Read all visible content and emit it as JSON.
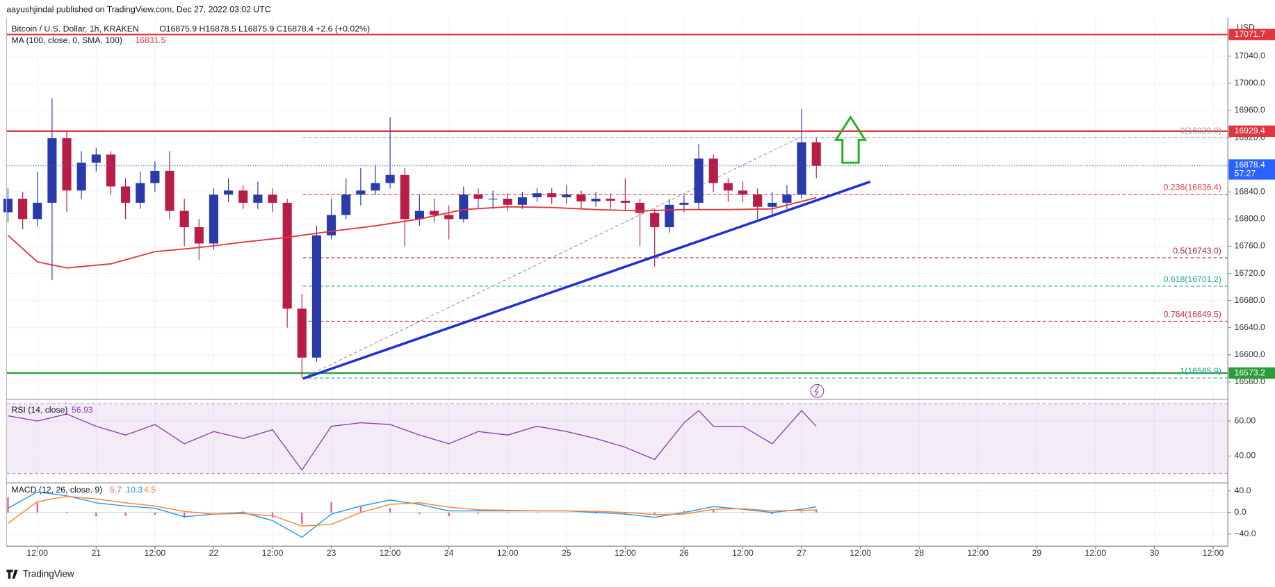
{
  "header": {
    "published": "aayushjindal published on TradingView.com, Dec 27, 2022 03:02 UTC",
    "symbol": "Bitcoin / U.S. Dollar, 1h, KRAKEN",
    "ohlc": "O16875.9 H16878.5 L16875.9 C16878.4 +2.6 (+0.02%)",
    "currency": "USD"
  },
  "footer": {
    "brand": "TradingView"
  },
  "chart_data": {
    "type": "candlestick",
    "xlim": [
      -18.3,
      231
    ],
    "xticks": [
      {
        "value": -12,
        "label": "12:00"
      },
      {
        "value": 0,
        "label": "21"
      },
      {
        "value": 12,
        "label": "12:00"
      },
      {
        "value": 24,
        "label": "22"
      },
      {
        "value": 36,
        "label": "12:00"
      },
      {
        "value": 48,
        "label": "23"
      },
      {
        "value": 60,
        "label": "12:00"
      },
      {
        "value": 72,
        "label": "24"
      },
      {
        "value": 84,
        "label": "12:00"
      },
      {
        "value": 96,
        "label": "25"
      },
      {
        "value": 108,
        "label": "12:00"
      },
      {
        "value": 120,
        "label": "26"
      },
      {
        "value": 132,
        "label": "12:00"
      },
      {
        "value": 144,
        "label": "27"
      },
      {
        "value": 156,
        "label": "12:00"
      },
      {
        "value": 168,
        "label": "28"
      },
      {
        "value": 180,
        "label": "12:00"
      },
      {
        "value": 192,
        "label": "29"
      },
      {
        "value": 204,
        "label": "12:00"
      },
      {
        "value": 216,
        "label": "30"
      },
      {
        "value": 228,
        "label": "12:00"
      }
    ],
    "ylim": [
      16536,
      17096
    ],
    "yticks": [
      {
        "value": 16560,
        "label": "16560.0"
      },
      {
        "value": 16600,
        "label": "16600.0"
      },
      {
        "value": 16640,
        "label": "16640.0"
      },
      {
        "value": 16680,
        "label": "16680.0"
      },
      {
        "value": 16720,
        "label": "16720.0"
      },
      {
        "value": 16760,
        "label": "16760.0"
      },
      {
        "value": 16800,
        "label": "16800.0"
      },
      {
        "value": 16840,
        "label": "16840.0"
      },
      {
        "value": 16880,
        "label": "16880.0"
      },
      {
        "value": 16920,
        "label": "16920.0"
      },
      {
        "value": 16960,
        "label": "16960.0"
      },
      {
        "value": 17000,
        "label": "17000.0"
      },
      {
        "value": 17040,
        "label": "17040.0"
      }
    ],
    "grid": true,
    "up_color": "#2a3aa8",
    "down_color": "#b81d45",
    "candles": {
      "x": [
        -18,
        -15,
        -12,
        -9,
        -6,
        -3,
        0,
        3,
        6,
        9,
        12,
        15,
        18,
        21,
        24,
        27,
        30,
        33,
        36,
        39,
        42,
        45,
        48,
        51,
        54,
        57,
        60,
        63,
        66,
        69,
        72,
        75,
        78,
        81,
        84,
        87,
        90,
        93,
        96,
        99,
        102,
        105,
        108,
        111,
        114,
        117,
        120,
        123,
        126,
        129,
        132,
        135,
        138,
        141,
        144,
        147
      ],
      "open": [
        16810,
        16830,
        16800,
        16824,
        16919,
        16842,
        16883,
        16895,
        16848,
        16824,
        16853,
        16871,
        16812,
        16788,
        16764,
        16836,
        16842,
        16824,
        16836,
        16824,
        16668,
        16596,
        16776,
        16806,
        16836,
        16842,
        16853,
        16865,
        16800,
        16812,
        16806,
        16800,
        16836,
        16830,
        16830,
        16821,
        16832,
        16838,
        16832,
        16836,
        16826,
        16830,
        16827,
        16824,
        16809,
        16788,
        16821,
        16824,
        16889,
        16853,
        16842,
        16836,
        16818,
        16824,
        16836,
        16913
      ],
      "high": [
        16845,
        16840,
        16870,
        16978,
        16930,
        16900,
        16905,
        16900,
        16860,
        16870,
        16885,
        16900,
        16830,
        16800,
        16845,
        16860,
        16850,
        16855,
        16845,
        16830,
        16690,
        16790,
        16830,
        16860,
        16875,
        16880,
        16950,
        16875,
        16835,
        16830,
        16820,
        16848,
        16845,
        16842,
        16838,
        16840,
        16846,
        16846,
        16850,
        16842,
        16840,
        16838,
        16860,
        16830,
        16815,
        16830,
        16835,
        16910,
        16895,
        16860,
        16855,
        16845,
        16840,
        16850,
        16962,
        16920
      ],
      "low": [
        16795,
        16785,
        16790,
        16710,
        16810,
        16830,
        16870,
        16835,
        16800,
        16815,
        16840,
        16800,
        16760,
        16740,
        16755,
        16825,
        16815,
        16815,
        16810,
        16640,
        16566,
        16590,
        16770,
        16800,
        16820,
        16835,
        16845,
        16760,
        16790,
        16795,
        16770,
        16795,
        16815,
        16815,
        16812,
        16815,
        16825,
        16822,
        16822,
        16815,
        16818,
        16815,
        16812,
        16760,
        16730,
        16780,
        16810,
        16815,
        16840,
        16825,
        16825,
        16800,
        16805,
        16815,
        16830,
        16860
      ],
      "close": [
        16830,
        16800,
        16824,
        16919,
        16842,
        16883,
        16895,
        16848,
        16824,
        16853,
        16871,
        16812,
        16788,
        16764,
        16836,
        16842,
        16824,
        16836,
        16824,
        16668,
        16596,
        16776,
        16806,
        16836,
        16842,
        16853,
        16865,
        16800,
        16812,
        16806,
        16800,
        16836,
        16830,
        16830,
        16821,
        16832,
        16838,
        16832,
        16836,
        16826,
        16830,
        16827,
        16824,
        16809,
        16788,
        16821,
        16824,
        16889,
        16853,
        16842,
        16836,
        16818,
        16824,
        16836,
        16913,
        16878.4
      ]
    },
    "ma": {
      "name": "MA (100, close, 0, SMA, 100)",
      "color": "#e0363f",
      "last": 16831.5,
      "x": [
        -18,
        -12,
        -6,
        3,
        12,
        21,
        30,
        39,
        48,
        57,
        66,
        75,
        84,
        93,
        102,
        111,
        120,
        129,
        138,
        147
      ],
      "values": [
        16776,
        16737,
        16728,
        16734,
        16752,
        16758,
        16766,
        16773,
        16782,
        16790,
        16800,
        16814,
        16818,
        16817,
        16814,
        16812,
        16814,
        16814,
        16815,
        16831.5
      ]
    },
    "levels": [
      {
        "value": 17071.7,
        "color": "#e0363f"
      },
      {
        "value": 16929.4,
        "color": "#e0363f"
      },
      {
        "value": 16573.2,
        "color": "#2e9b3a"
      }
    ],
    "last_price": {
      "value": 16878.4,
      "countdown": "57:27",
      "color": "#2962ff"
    },
    "fib": [
      {
        "label": "0(16920.0)",
        "value": 16920.0,
        "color": "#9598a1"
      },
      {
        "label": "0.236(16836.4)",
        "value": 16836.4,
        "color": "#d94a4a"
      },
      {
        "label": "0.5(16743.0)",
        "value": 16743.0,
        "color": "#9c2a3a"
      },
      {
        "label": "0.618(16701.2)",
        "value": 16701.2,
        "color": "#1aa88a"
      },
      {
        "label": "0.764(16649.5)",
        "value": 16649.5,
        "color": "#c62f3c"
      },
      {
        "label": "1(16565.9)",
        "value": 16565.9,
        "color": "#1aa88a"
      }
    ],
    "fib_start": 42.2,
    "trendline": {
      "color": "#1e2fd8",
      "x": [
        42.2,
        158
      ],
      "y": [
        16565,
        16855
      ]
    },
    "fib_diagonal": {
      "x": [
        42.2,
        143.6
      ],
      "y": [
        16565.9,
        16920
      ]
    },
    "rsi": {
      "name": "RSI (14, close)",
      "color": "#8e44ad",
      "last": 56.93,
      "ylim": [
        25.6,
        71.6
      ],
      "band": [
        30,
        70
      ],
      "yticks": [
        {
          "value": 40,
          "label": "40.00"
        },
        {
          "value": 60,
          "label": "60.00"
        }
      ],
      "x": [
        -18,
        -12,
        -6,
        0,
        6,
        12,
        18,
        24,
        30,
        36,
        42,
        48,
        54,
        60,
        66,
        72,
        78,
        84,
        90,
        96,
        102,
        108,
        114,
        120,
        123,
        126,
        132,
        138,
        144,
        147
      ],
      "values": [
        63,
        60,
        64,
        57,
        52,
        58,
        47,
        54,
        50,
        55,
        32,
        57,
        59,
        58,
        52,
        47,
        54,
        52,
        57,
        54,
        50,
        45,
        38,
        59,
        66,
        57,
        57,
        47,
        66,
        56.93
      ]
    },
    "macd": {
      "name": "MACD (12, 26, close, 9)",
      "ylim": [
        -61,
        52
      ],
      "yticks": [
        {
          "value": 40,
          "label": "40.0"
        },
        {
          "value": 0,
          "label": "0.0"
        },
        {
          "value": -40,
          "label": "−40.0"
        }
      ],
      "x": [
        -18,
        -12,
        -6,
        0,
        6,
        12,
        18,
        24,
        30,
        36,
        42,
        48,
        54,
        60,
        66,
        72,
        78,
        84,
        90,
        96,
        102,
        108,
        114,
        120,
        126,
        132,
        138,
        144,
        147
      ],
      "series": [
        {
          "name": "Histogram",
          "color": "#e05aa8",
          "last": 5.7,
          "values": [
            28,
            18,
            1,
            -7,
            -6,
            -4,
            -10,
            0,
            2,
            -9,
            -21,
            19,
            12,
            8,
            -3,
            -7,
            -2,
            -1,
            0,
            0,
            -2,
            -3,
            -5,
            3,
            5,
            -1,
            -3,
            2,
            5.7
          ]
        },
        {
          "name": "MACD",
          "color": "#2196f3",
          "last": 10.3,
          "values": [
            8,
            38,
            31,
            18,
            12,
            8,
            -8,
            -3,
            0,
            -15,
            -46,
            -3,
            12,
            23,
            15,
            3,
            3,
            3,
            3,
            3,
            0,
            -3,
            -9,
            0,
            11,
            6,
            0,
            6,
            10.3
          ]
        },
        {
          "name": "Signal",
          "color": "#ff7f27",
          "last": 4.5,
          "values": [
            -20,
            20,
            30,
            25,
            18,
            12,
            2,
            -3,
            -2,
            -6,
            -25,
            -22,
            0,
            15,
            18,
            10,
            5,
            4,
            3,
            3,
            2,
            0,
            -4,
            -3,
            6,
            7,
            3,
            4,
            4.5
          ]
        }
      ]
    }
  }
}
